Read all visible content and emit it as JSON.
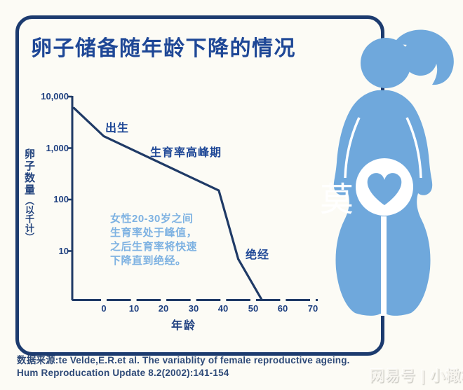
{
  "page_background": "#fcfbf5",
  "colors": {
    "card_border": "#1c3b6f",
    "chart_line": "#1f3a66",
    "heading_text": "#1e4796",
    "annotation_text": "#7eb2e2",
    "figure_blue": "#6fa8dc",
    "source_text": "#2e4a78"
  },
  "title": "卵子储备随年龄下降的情况",
  "chart": {
    "y_axis": {
      "title_main": "卵子数量",
      "title_sub": "（以千计）",
      "tick_labels": [
        "10,000",
        "1,000",
        "100",
        "10"
      ]
    },
    "x_axis": {
      "title": "年龄",
      "tick_labels": [
        "0",
        "10",
        "20",
        "30",
        "40",
        "50",
        "60",
        "70"
      ]
    },
    "curve_labels": {
      "birth": "出生",
      "peak_fertility": "生育率高峰期",
      "menopause": "绝经"
    },
    "annotation_lines": [
      "女性20-30岁之间",
      "生育率处于峰值，",
      "之后生育率将快速",
      "下降直到绝经。"
    ]
  },
  "chart_data": {
    "type": "line",
    "title": "卵子储备随年龄下降的情况",
    "xlabel": "年龄",
    "ylabel": "卵子数量（以千计）",
    "x_range": [
      -10,
      70
    ],
    "x_ticks": [
      0,
      10,
      20,
      30,
      40,
      50,
      60,
      70
    ],
    "y_scale": "log",
    "y_ticks": [
      10000,
      1000,
      100,
      10
    ],
    "grid": false,
    "legend": "none",
    "series": [
      {
        "name": "卵子数量（以千计）",
        "points": [
          [
            -10,
            6000
          ],
          [
            0,
            1700
          ],
          [
            38.5,
            150
          ],
          [
            45,
            7
          ],
          [
            52.8,
            1
          ]
        ]
      }
    ],
    "point_annotations": [
      {
        "x": 0,
        "label": "出生"
      },
      {
        "x": 20,
        "label": "生育率高峰期"
      },
      {
        "x": 48,
        "label": "绝经"
      }
    ]
  },
  "source": {
    "line1": "数据来源:te Velde,E.R.et al. The variablity of female reproductive ageing.",
    "line2": "Hum Reproducation Update 8.2(2002):141-154"
  },
  "watermarks": {
    "overlay_character": "莫",
    "publisher": "网易号 | 小橄榄"
  },
  "figure": {
    "icon": "pregnant-woman-silhouette",
    "color": "#6fa8dc"
  }
}
